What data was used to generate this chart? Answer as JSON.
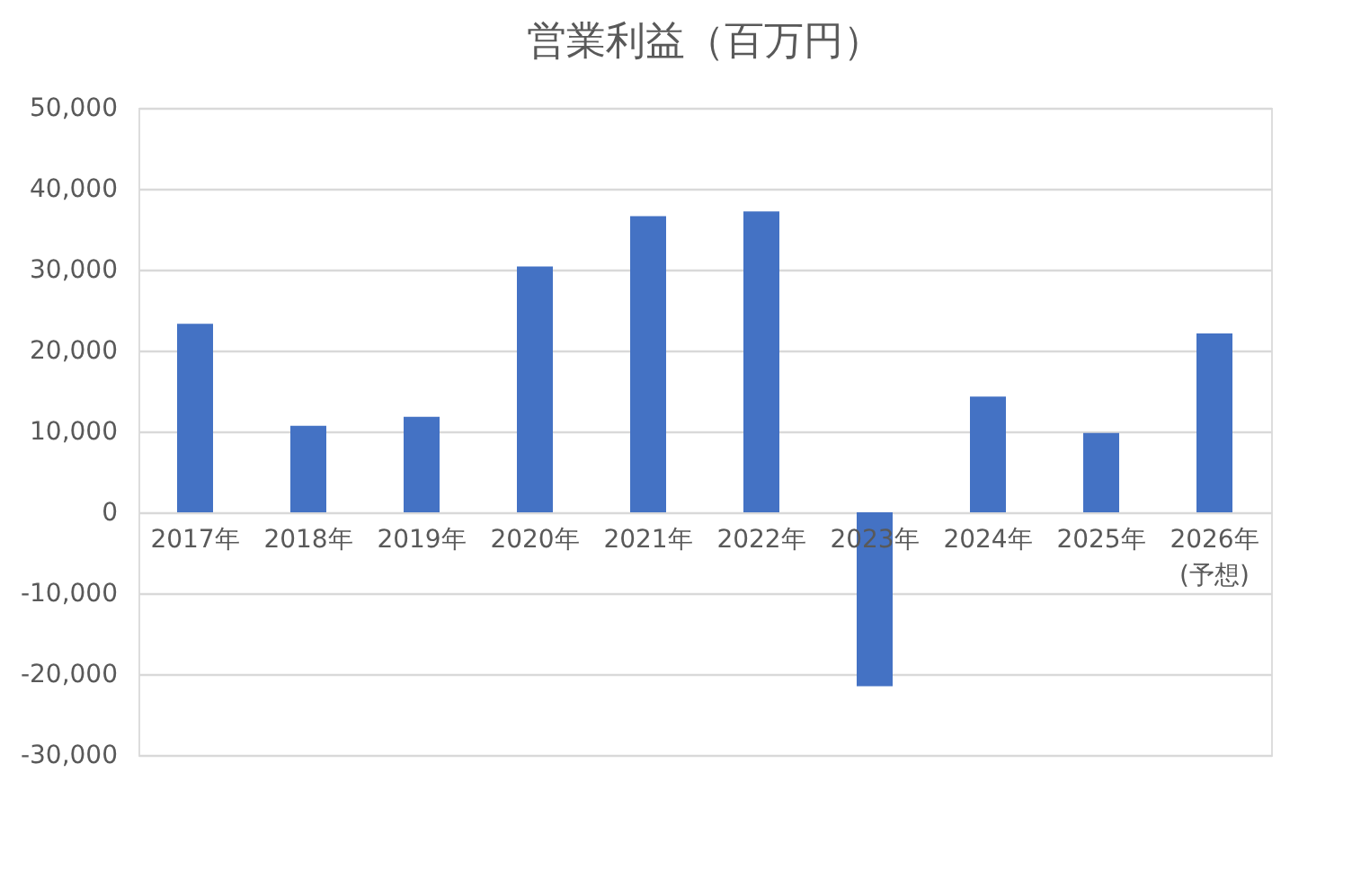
{
  "chart_data": {
    "type": "bar",
    "title": "営業利益（百万円）",
    "categories": [
      "2017年",
      "2018年",
      "2019年",
      "2020年",
      "2021年",
      "2022年",
      "2023年",
      "2024年",
      "2025年",
      "2026年\n(予想)"
    ],
    "values": [
      23300,
      10700,
      11800,
      30400,
      36600,
      37200,
      -21500,
      14300,
      9800,
      22100
    ],
    "color": "#4472c4",
    "ylim": [
      -30000,
      50000
    ],
    "yticks": [
      {
        "value": -30000,
        "label": "-30,000"
      },
      {
        "value": -20000,
        "label": "-20,000"
      },
      {
        "value": -10000,
        "label": "-10,000"
      },
      0,
      {
        "value": 10000,
        "label": "10,000"
      },
      {
        "value": 20000,
        "label": "20,000"
      },
      {
        "value": 30000,
        "label": "30,000"
      },
      {
        "value": 40000,
        "label": "40,000"
      },
      {
        "value": 50000,
        "label": "50,000"
      }
    ],
    "grid": "y"
  }
}
